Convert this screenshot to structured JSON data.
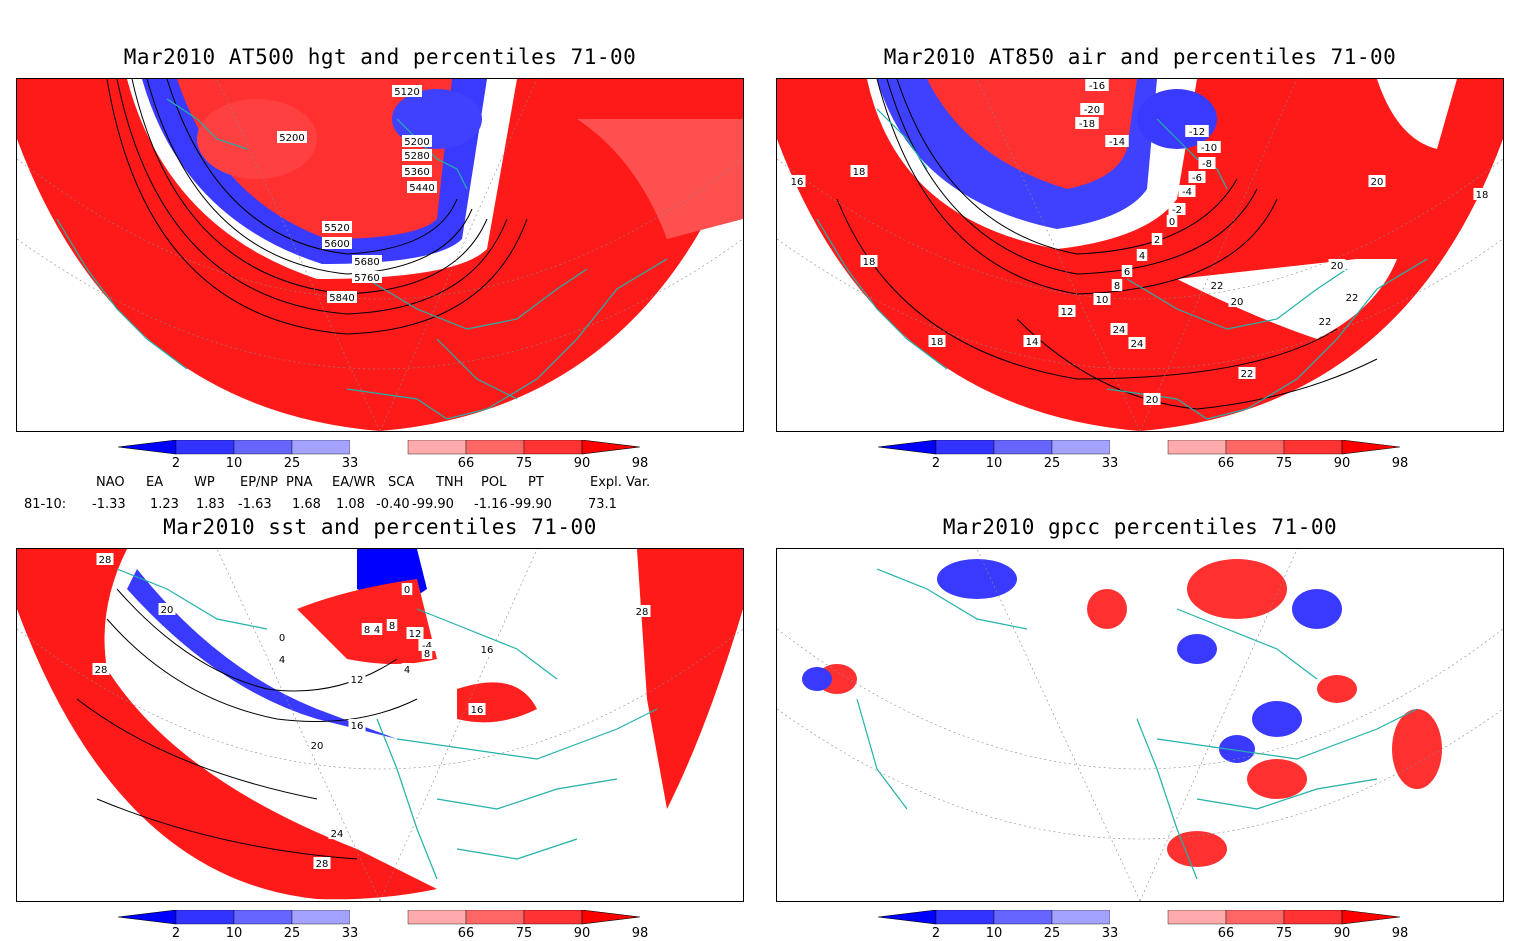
{
  "panels": {
    "hgt": {
      "title": "Mar2010 AT500 hgt and percentiles 71-00",
      "contour_labels": [
        "5120",
        "5200",
        "5200",
        "5280",
        "5360",
        "5440",
        "5520",
        "5600",
        "5680",
        "5760",
        "5840"
      ]
    },
    "air": {
      "title": "Mar2010 AT850 air and percentiles 71-00",
      "contour_labels": [
        "-16",
        "-20",
        "-18",
        "-14",
        "-12",
        "-10",
        "-8",
        "-6",
        "-4",
        "-2",
        "0",
        "2",
        "4",
        "6",
        "8",
        "10",
        "12",
        "14",
        "16",
        "18",
        "18",
        "18",
        "20",
        "20",
        "20",
        "22",
        "22",
        "22",
        "24",
        "24",
        "22",
        "20",
        "18"
      ]
    },
    "sst": {
      "title": "Mar2010 sst and percentiles 71-00",
      "contour_labels": [
        "28",
        "28",
        "20",
        "0",
        "4",
        "8",
        "12",
        "16",
        "16",
        "20",
        "24",
        "28",
        "28",
        "0",
        "4",
        "8",
        "12",
        "-4",
        "4",
        "8",
        "16"
      ]
    },
    "gpcc": {
      "title": "Mar2010 gpcc percentiles 71-00"
    }
  },
  "colorbar": {
    "ticks": [
      "2",
      "10",
      "25",
      "33",
      "66",
      "75",
      "90",
      "98"
    ],
    "colors": [
      "#0000ff",
      "#3333ff",
      "#6666ff",
      "#a3a3ff",
      "#ffffff",
      "#ffabab",
      "#ff6666",
      "#ff3333",
      "#ff0000"
    ]
  },
  "indices": {
    "headers": [
      "NAO",
      "EA",
      "WP",
      "EP/NP",
      "PNA",
      "EA/WR",
      "SCA",
      "TNH",
      "POL",
      "PT",
      "Expl. Var."
    ],
    "row_label": "81-10:",
    "values": [
      "-1.33",
      "1.23",
      "1.83",
      "-1.63",
      "1.68",
      "1.08",
      "-0.40",
      "-99.90",
      "-1.16",
      "-99.90",
      "73.1"
    ]
  },
  "map_colors": {
    "land_outline": "#20b2aa",
    "warm": "#ff1a1a",
    "cool": "#2a2aff"
  }
}
